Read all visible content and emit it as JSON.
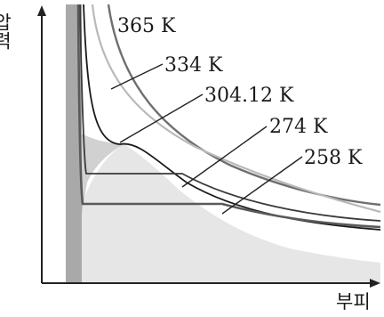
{
  "chart_data": {
    "type": "line",
    "title": "",
    "xlabel": "부피",
    "ylabel": "압력",
    "grid": false,
    "legend": "none",
    "series": [
      {
        "name": "365 K",
        "label": "365 K",
        "color": "#6f6f6f"
      },
      {
        "name": "334 K",
        "label": "334 K",
        "color": "#b9b9b9"
      },
      {
        "name": "304.12 K",
        "label": "304.12 K",
        "color": "#1a1a1a"
      },
      {
        "name": "274 K",
        "label": "274 K",
        "color": "#3a3a3a"
      },
      {
        "name": "258 K",
        "label": "258 K",
        "color": "#5a5a5a"
      }
    ],
    "regions": {
      "coexistence_fill": "#e3e3e3",
      "liquid_band_fill": "#a9a9a9"
    }
  }
}
